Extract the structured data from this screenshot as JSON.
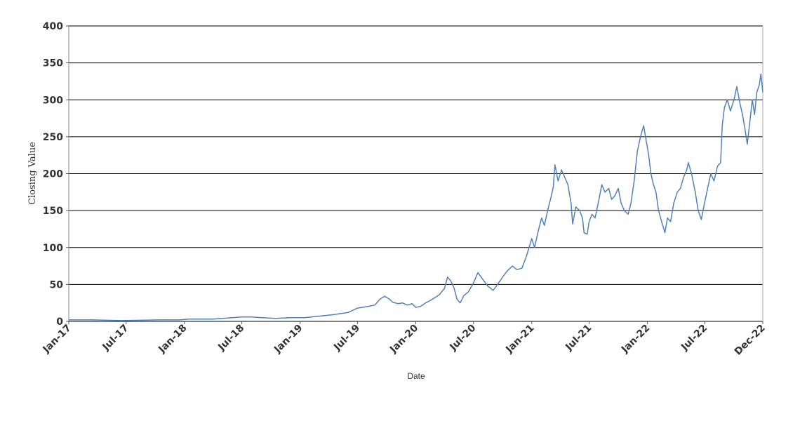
{
  "chart_data": {
    "type": "line",
    "xlabel": "Date",
    "ylabel": "Closing Value",
    "ylim": [
      0,
      400
    ],
    "yticks": [
      0,
      50,
      100,
      150,
      200,
      250,
      300,
      350,
      400
    ],
    "xlim": [
      "2017-01-01",
      "2022-12-31"
    ],
    "xticks": [
      {
        "date": "2017-01-01",
        "label": "Jan-17"
      },
      {
        "date": "2017-07-01",
        "label": "Jul-17"
      },
      {
        "date": "2018-01-01",
        "label": "Jan-18"
      },
      {
        "date": "2018-07-01",
        "label": "Jul-18"
      },
      {
        "date": "2019-01-01",
        "label": "Jan-19"
      },
      {
        "date": "2019-07-01",
        "label": "Jul-19"
      },
      {
        "date": "2020-01-01",
        "label": "Jan-20"
      },
      {
        "date": "2020-07-01",
        "label": "Jul-20"
      },
      {
        "date": "2021-01-01",
        "label": "Jan-21"
      },
      {
        "date": "2021-07-01",
        "label": "Jul-21"
      },
      {
        "date": "2022-01-01",
        "label": "Jan-22"
      },
      {
        "date": "2022-07-01",
        "label": "Jul-22"
      },
      {
        "date": "2022-12-31",
        "label": "Dec-22"
      }
    ],
    "grid": "horizontal",
    "line_color": "#4f81bd",
    "series": [
      {
        "points": [
          [
            "2017-01-01",
            2
          ],
          [
            "2017-03-15",
            2
          ],
          [
            "2017-06-15",
            1
          ],
          [
            "2017-08-15",
            1.5
          ],
          [
            "2017-10-15",
            2
          ],
          [
            "2017-12-15",
            2
          ],
          [
            "2018-01-15",
            3
          ],
          [
            "2018-04-01",
            3
          ],
          [
            "2018-05-01",
            4
          ],
          [
            "2018-06-01",
            5
          ],
          [
            "2018-07-01",
            6
          ],
          [
            "2018-08-01",
            6
          ],
          [
            "2018-09-01",
            5
          ],
          [
            "2018-10-15",
            4
          ],
          [
            "2018-12-01",
            5
          ],
          [
            "2019-01-15",
            5
          ],
          [
            "2019-03-01",
            7
          ],
          [
            "2019-04-15",
            9
          ],
          [
            "2019-06-01",
            12
          ],
          [
            "2019-07-01",
            18
          ],
          [
            "2019-08-01",
            20
          ],
          [
            "2019-08-25",
            22
          ],
          [
            "2019-09-10",
            30
          ],
          [
            "2019-09-25",
            34
          ],
          [
            "2019-10-10",
            30
          ],
          [
            "2019-10-20",
            26
          ],
          [
            "2019-11-05",
            24
          ],
          [
            "2019-11-20",
            25
          ],
          [
            "2019-12-05",
            22
          ],
          [
            "2019-12-20",
            24
          ],
          [
            "2020-01-01",
            19
          ],
          [
            "2020-01-15",
            20
          ],
          [
            "2020-02-01",
            25
          ],
          [
            "2020-02-15",
            28
          ],
          [
            "2020-03-01",
            32
          ],
          [
            "2020-03-15",
            36
          ],
          [
            "2020-04-01",
            45
          ],
          [
            "2020-04-10",
            60
          ],
          [
            "2020-04-20",
            55
          ],
          [
            "2020-05-01",
            45
          ],
          [
            "2020-05-10",
            30
          ],
          [
            "2020-05-20",
            25
          ],
          [
            "2020-06-01",
            35
          ],
          [
            "2020-06-15",
            40
          ],
          [
            "2020-07-01",
            52
          ],
          [
            "2020-07-15",
            66
          ],
          [
            "2020-08-01",
            56
          ],
          [
            "2020-08-15",
            48
          ],
          [
            "2020-09-01",
            42
          ],
          [
            "2020-09-15",
            50
          ],
          [
            "2020-10-01",
            60
          ],
          [
            "2020-10-15",
            68
          ],
          [
            "2020-11-01",
            75
          ],
          [
            "2020-11-15",
            70
          ],
          [
            "2020-12-01",
            72
          ],
          [
            "2020-12-15",
            88
          ],
          [
            "2021-01-01",
            112
          ],
          [
            "2021-01-10",
            100
          ],
          [
            "2021-01-20",
            120
          ],
          [
            "2021-02-01",
            140
          ],
          [
            "2021-02-10",
            130
          ],
          [
            "2021-02-20",
            150
          ],
          [
            "2021-03-01",
            165
          ],
          [
            "2021-03-10",
            182
          ],
          [
            "2021-03-15",
            212
          ],
          [
            "2021-03-25",
            190
          ],
          [
            "2021-04-05",
            205
          ],
          [
            "2021-04-15",
            195
          ],
          [
            "2021-04-25",
            185
          ],
          [
            "2021-05-05",
            160
          ],
          [
            "2021-05-10",
            132
          ],
          [
            "2021-05-20",
            155
          ],
          [
            "2021-06-01",
            150
          ],
          [
            "2021-06-10",
            140
          ],
          [
            "2021-06-15",
            120
          ],
          [
            "2021-06-25",
            118
          ],
          [
            "2021-07-01",
            135
          ],
          [
            "2021-07-10",
            145
          ],
          [
            "2021-07-20",
            140
          ],
          [
            "2021-08-01",
            165
          ],
          [
            "2021-08-10",
            185
          ],
          [
            "2021-08-20",
            175
          ],
          [
            "2021-09-01",
            180
          ],
          [
            "2021-09-10",
            165
          ],
          [
            "2021-09-20",
            170
          ],
          [
            "2021-10-01",
            180
          ],
          [
            "2021-10-10",
            160
          ],
          [
            "2021-10-20",
            150
          ],
          [
            "2021-11-01",
            145
          ],
          [
            "2021-11-10",
            160
          ],
          [
            "2021-11-20",
            190
          ],
          [
            "2021-11-30",
            230
          ],
          [
            "2021-12-10",
            250
          ],
          [
            "2021-12-20",
            265
          ],
          [
            "2021-12-28",
            245
          ],
          [
            "2022-01-05",
            225
          ],
          [
            "2022-01-12",
            200
          ],
          [
            "2022-01-20",
            185
          ],
          [
            "2022-01-28",
            175
          ],
          [
            "2022-02-05",
            150
          ],
          [
            "2022-02-15",
            135
          ],
          [
            "2022-02-25",
            120
          ],
          [
            "2022-03-05",
            140
          ],
          [
            "2022-03-15",
            135
          ],
          [
            "2022-03-25",
            160
          ],
          [
            "2022-04-05",
            175
          ],
          [
            "2022-04-15",
            180
          ],
          [
            "2022-04-25",
            195
          ],
          [
            "2022-05-05",
            205
          ],
          [
            "2022-05-10",
            215
          ],
          [
            "2022-05-20",
            200
          ],
          [
            "2022-06-01",
            175
          ],
          [
            "2022-06-10",
            150
          ],
          [
            "2022-06-20",
            138
          ],
          [
            "2022-06-30",
            160
          ],
          [
            "2022-07-10",
            180
          ],
          [
            "2022-07-20",
            200
          ],
          [
            "2022-07-30",
            190
          ],
          [
            "2022-08-10",
            210
          ],
          [
            "2022-08-20",
            215
          ],
          [
            "2022-08-25",
            265
          ],
          [
            "2022-09-01",
            290
          ],
          [
            "2022-09-10",
            300
          ],
          [
            "2022-09-20",
            285
          ],
          [
            "2022-10-01",
            300
          ],
          [
            "2022-10-10",
            318
          ],
          [
            "2022-10-20",
            295
          ],
          [
            "2022-10-28",
            280
          ],
          [
            "2022-11-05",
            260
          ],
          [
            "2022-11-12",
            240
          ],
          [
            "2022-11-20",
            270
          ],
          [
            "2022-11-28",
            300
          ],
          [
            "2022-12-05",
            280
          ],
          [
            "2022-12-12",
            310
          ],
          [
            "2022-12-20",
            320
          ],
          [
            "2022-12-25",
            335
          ],
          [
            "2022-12-31",
            310
          ]
        ]
      }
    ]
  }
}
